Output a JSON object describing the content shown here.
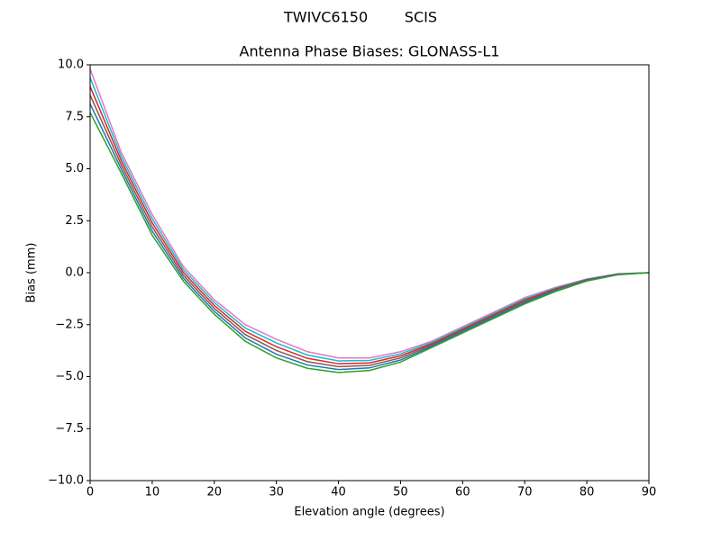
{
  "chart_data": {
    "type": "line",
    "suptitle": "TWIVC6150        SCIS",
    "title": "Antenna Phase Biases: GLONASS-L1",
    "xlabel": "Elevation angle (degrees)",
    "ylabel": "Bias (mm)",
    "x": [
      0,
      5,
      10,
      15,
      20,
      25,
      30,
      35,
      40,
      45,
      50,
      55,
      60,
      65,
      70,
      75,
      80,
      85,
      90
    ],
    "series": [
      {
        "color": "#e377c2",
        "values": [
          9.8,
          5.8,
          2.8,
          0.3,
          -1.3,
          -2.5,
          -3.2,
          -3.8,
          -4.1,
          -4.1,
          -3.8,
          -3.3,
          -2.6,
          -1.9,
          -1.2,
          -0.7,
          -0.3,
          -0.05,
          0
        ]
      },
      {
        "color": "#17becf",
        "values": [
          9.38,
          5.6,
          2.6,
          0.16,
          -1.44,
          -2.66,
          -3.38,
          -3.96,
          -4.24,
          -4.22,
          -3.9,
          -3.36,
          -2.66,
          -1.96,
          -1.26,
          -0.74,
          -0.32,
          -0.06,
          0
        ]
      },
      {
        "color": "#d62728",
        "values": [
          8.96,
          5.4,
          2.4,
          0.02,
          -1.58,
          -2.82,
          -3.56,
          -4.12,
          -4.38,
          -4.34,
          -4.0,
          -3.42,
          -2.72,
          -2.02,
          -1.32,
          -0.78,
          -0.34,
          -0.07,
          0
        ]
      },
      {
        "color": "#8c564b",
        "values": [
          8.54,
          5.2,
          2.2,
          -0.12,
          -1.72,
          -2.98,
          -3.74,
          -4.28,
          -4.52,
          -4.46,
          -4.1,
          -3.48,
          -2.78,
          -2.08,
          -1.38,
          -0.82,
          -0.36,
          -0.08,
          0
        ]
      },
      {
        "color": "#1f77b4",
        "values": [
          8.12,
          5.0,
          2.0,
          -0.26,
          -1.86,
          -3.14,
          -3.92,
          -4.44,
          -4.66,
          -4.58,
          -4.2,
          -3.54,
          -2.84,
          -2.14,
          -1.44,
          -0.86,
          -0.38,
          -0.09,
          0
        ]
      },
      {
        "color": "#2ca02c",
        "values": [
          7.7,
          4.8,
          1.8,
          -0.4,
          -2.0,
          -3.3,
          -4.1,
          -4.6,
          -4.8,
          -4.7,
          -4.3,
          -3.6,
          -2.9,
          -2.2,
          -1.5,
          -0.9,
          -0.4,
          -0.1,
          0
        ]
      }
    ],
    "xlim": [
      0,
      90
    ],
    "xticks": [
      0,
      10,
      20,
      30,
      40,
      50,
      60,
      70,
      80,
      90
    ],
    "ylim": [
      -10,
      10
    ],
    "yticks": [
      {
        "value": -10,
        "label": "−10.0"
      },
      {
        "value": -7.5,
        "label": "−7.5"
      },
      {
        "value": -5,
        "label": "−5.0"
      },
      {
        "value": -2.5,
        "label": "−2.5"
      },
      {
        "value": 0,
        "label": "0.0"
      },
      {
        "value": 2.5,
        "label": "2.5"
      },
      {
        "value": 5,
        "label": "5.0"
      },
      {
        "value": 7.5,
        "label": "7.5"
      },
      {
        "value": 10,
        "label": "10.0"
      }
    ]
  }
}
